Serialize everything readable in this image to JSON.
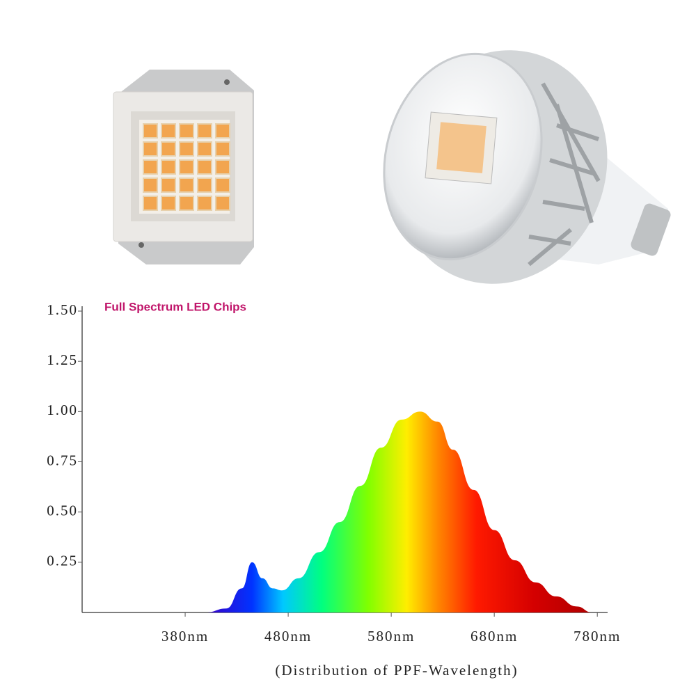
{
  "chart_data": {
    "type": "area",
    "title": "Full Spectrum LED Chips",
    "x_label": "(Distribution of PPF-Wavelength)",
    "x": [
      400,
      420,
      435,
      445,
      455,
      465,
      474,
      490,
      510,
      530,
      550,
      570,
      590,
      608,
      625,
      640,
      660,
      680,
      700,
      720,
      740,
      760,
      775
    ],
    "values": [
      0,
      0.02,
      0.12,
      0.25,
      0.17,
      0.12,
      0.11,
      0.17,
      0.3,
      0.45,
      0.63,
      0.82,
      0.96,
      1.0,
      0.95,
      0.81,
      0.61,
      0.41,
      0.26,
      0.15,
      0.08,
      0.03,
      0
    ],
    "xlim": [
      280,
      790
    ],
    "ylim": [
      0,
      1.5
    ],
    "xticks": [
      {
        "value": 380,
        "label": "380nm"
      },
      {
        "value": 480,
        "label": "480nm"
      },
      {
        "value": 580,
        "label": "580nm"
      },
      {
        "value": 680,
        "label": "680nm"
      },
      {
        "value": 780,
        "label": "780nm"
      }
    ],
    "yticks": [
      0.25,
      {
        "value": 0.5,
        "label": "0.50"
      },
      0.75,
      {
        "value": 1.0,
        "label": "1.00"
      },
      1.25,
      {
        "value": 1.5,
        "label": "1.50"
      }
    ]
  }
}
